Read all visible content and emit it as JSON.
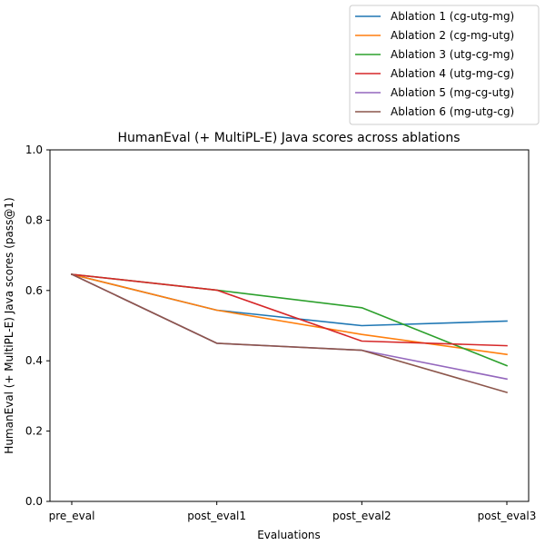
{
  "chart_data": {
    "type": "line",
    "title": "HumanEval (+ MultiPL-E) Java scores across ablations",
    "xlabel": "Evaluations",
    "ylabel": "HumanEval (+ MultiPL-E) Java scores (pass@1)",
    "categories": [
      "pre_eval",
      "post_eval1",
      "post_eval2",
      "post_eval3"
    ],
    "ylim": [
      0.0,
      1.0
    ],
    "yticks": [
      "0.0",
      "0.2",
      "0.4",
      "0.6",
      "0.8",
      "1.0"
    ],
    "grid": false,
    "legend_position": "top-right (above plot)",
    "series": [
      {
        "name": "Ablation 1 (cg-utg-mg)",
        "color": "#1f77b4",
        "values": [
          0.646,
          0.544,
          0.5,
          0.513
        ]
      },
      {
        "name": "Ablation 2 (cg-mg-utg)",
        "color": "#ff7f0e",
        "values": [
          0.646,
          0.544,
          0.475,
          0.418
        ]
      },
      {
        "name": "Ablation 3 (utg-cg-mg)",
        "color": "#2ca02c",
        "values": [
          0.646,
          0.601,
          0.551,
          0.386
        ]
      },
      {
        "name": "Ablation 4 (utg-mg-cg)",
        "color": "#d62728",
        "values": [
          0.646,
          0.601,
          0.456,
          0.443
        ]
      },
      {
        "name": "Ablation 5 (mg-cg-utg)",
        "color": "#9467bd",
        "values": [
          0.646,
          0.45,
          0.43,
          0.348
        ]
      },
      {
        "name": "Ablation 6 (mg-utg-cg)",
        "color": "#8c564b",
        "values": [
          0.646,
          0.45,
          0.43,
          0.31
        ]
      }
    ]
  }
}
